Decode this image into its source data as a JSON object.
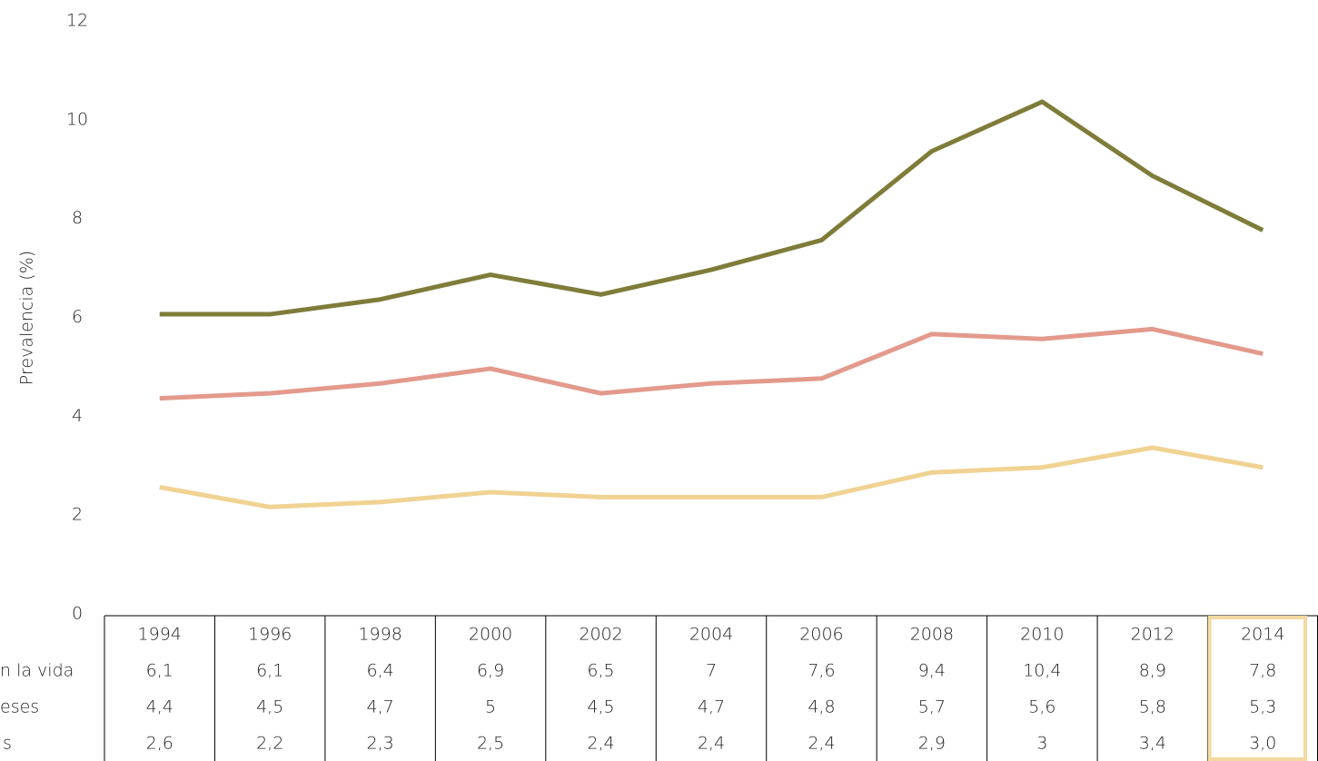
{
  "chart_data": {
    "type": "line",
    "y_label": "Prevalencia (%)",
    "categories": [
      "1994",
      "1996",
      "1998",
      "2000",
      "2002",
      "2004",
      "2006",
      "2008",
      "2010",
      "2012",
      "2014"
    ],
    "series": [
      {
        "name": "n la vida",
        "color": "#7f7c3a",
        "values": [
          6.1,
          6.1,
          6.4,
          6.9,
          6.5,
          7,
          7.6,
          9.4,
          10.4,
          8.9,
          7.8
        ],
        "value_labels": [
          "6,1",
          "6,1",
          "6,4",
          "6,9",
          "6,5",
          "7",
          "7,6",
          "9,4",
          "10,4",
          "8,9",
          "7,8"
        ]
      },
      {
        "name": "eses",
        "color": "#e39a8c",
        "values": [
          4.4,
          4.5,
          4.7,
          5,
          4.5,
          4.7,
          4.8,
          5.7,
          5.6,
          5.8,
          5.3
        ],
        "value_labels": [
          "4,4",
          "4,5",
          "4,7",
          "5",
          "4,5",
          "4,7",
          "4,8",
          "5,7",
          "5,6",
          "5,8",
          "5,3"
        ]
      },
      {
        "name": "s",
        "color": "#f0d393",
        "values": [
          2.6,
          2.2,
          2.3,
          2.5,
          2.4,
          2.4,
          2.4,
          2.9,
          3,
          3.4,
          3.0
        ],
        "value_labels": [
          "2,6",
          "2,2",
          "2,3",
          "2,5",
          "2,4",
          "2,4",
          "2,4",
          "2,9",
          "3",
          "3,4",
          "3,0"
        ]
      }
    ],
    "ylim": [
      0,
      12
    ],
    "yticks": [
      0,
      2,
      4,
      6,
      8,
      10,
      12
    ],
    "grid": false
  }
}
